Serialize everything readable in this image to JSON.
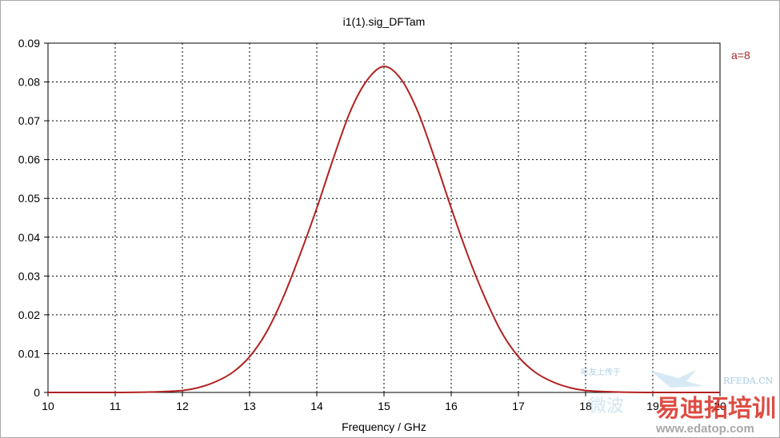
{
  "chart_data": {
    "type": "line",
    "title": "i1(1).sig_DFTam",
    "xlabel": "Frequency / GHz",
    "ylabel": "",
    "xlim": [
      10,
      20
    ],
    "ylim": [
      0,
      0.09
    ],
    "xticks": [
      "10",
      "11",
      "12",
      "13",
      "14",
      "15",
      "16",
      "17",
      "18",
      "19",
      "20"
    ],
    "yticks": [
      "0",
      "0.01",
      "0.02",
      "0.03",
      "0.04",
      "0.05",
      "0.06",
      "0.07",
      "0.08",
      "0.09"
    ],
    "grid": true,
    "legend_position": "top-right",
    "series": [
      {
        "name": "a=8",
        "color": "#b22222",
        "x": [
          10,
          11,
          11.5,
          12,
          12.25,
          12.5,
          12.75,
          13,
          13.25,
          13.5,
          13.75,
          14,
          14.25,
          14.5,
          14.75,
          15,
          15.25,
          15.5,
          15.75,
          16,
          16.25,
          16.5,
          16.75,
          17,
          17.25,
          17.5,
          17.75,
          18,
          18.5,
          19,
          20
        ],
        "y": [
          0,
          0,
          0.0001,
          0.0005,
          0.0013,
          0.0028,
          0.0052,
          0.0092,
          0.0155,
          0.0245,
          0.0355,
          0.0475,
          0.0605,
          0.0725,
          0.0805,
          0.084,
          0.0808,
          0.0725,
          0.0605,
          0.0475,
          0.0352,
          0.0245,
          0.0155,
          0.0092,
          0.0052,
          0.0028,
          0.0013,
          0.0005,
          0.0001,
          0,
          0
        ]
      }
    ]
  },
  "watermark": {
    "line1": "听友上传于",
    "line2": "RFEDA.CN",
    "line3": "微波",
    "line4": "易迪拓培训",
    "line5": "www.edatop.com"
  }
}
